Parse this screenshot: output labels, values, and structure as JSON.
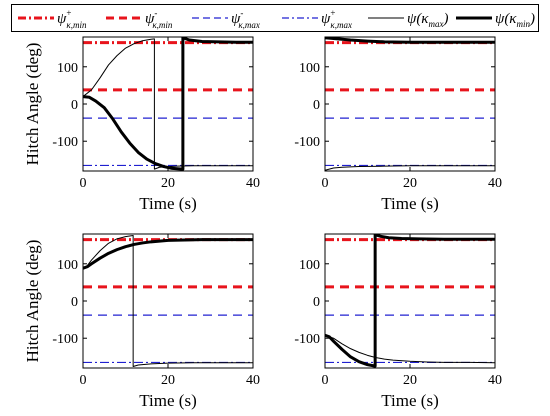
{
  "legend": {
    "entries": [
      {
        "sym": "ψ",
        "sup": "+",
        "sub": "κ,min",
        "color": "#e8141c",
        "dash": "8,3,2,3",
        "width": 3
      },
      {
        "sym": "ψ",
        "sup": "-",
        "sub": "κ,min",
        "color": "#e8141c",
        "dash": "8,5",
        "width": 3
      },
      {
        "sym": "ψ",
        "sup": "-",
        "sub": "κ,max",
        "color": "#2020d0",
        "dash": "7,4",
        "width": 1.2
      },
      {
        "sym": "ψ",
        "sup": "+",
        "sub": "κ,max",
        "color": "#2020d0",
        "dash": "7,3,2,3",
        "width": 1.2
      },
      {
        "sym": "ψ(κ",
        "sub2": "max",
        "tail": ")",
        "color": "#000000",
        "dash": "",
        "width": 1
      },
      {
        "sym": "ψ(κ",
        "sub2": "min",
        "tail": ")",
        "color": "#000000",
        "dash": "",
        "width": 3
      }
    ]
  },
  "chart_data": [
    {
      "type": "line",
      "xlabel": "Time (s)",
      "ylabel": "Hitch Angle (deg)",
      "xlim": [
        0,
        40
      ],
      "ylim": [
        -180,
        180
      ],
      "xticks": [
        0,
        20,
        40
      ],
      "yticks": [
        -100,
        0,
        100
      ],
      "hlines": [
        {
          "name": "ψ+κ,min",
          "y": 165,
          "color": "#e8141c",
          "style": "dash-dot",
          "width": 3
        },
        {
          "name": "ψ-κ,min",
          "y": 38,
          "color": "#e8141c",
          "style": "dashed",
          "width": 3
        },
        {
          "name": "ψ-κ,max",
          "y": -38,
          "color": "#2020d0",
          "style": "dashed",
          "width": 1.2
        },
        {
          "name": "ψ+κ,max",
          "y": -165,
          "color": "#2020d0",
          "style": "dash-dot",
          "width": 1.2
        }
      ],
      "series": [
        {
          "name": "ψ(κmax)",
          "color": "#000000",
          "width": 1,
          "x": [
            0,
            2,
            4,
            6,
            8,
            10,
            12,
            14,
            16,
            16.8,
            16.8,
            18,
            22,
            26,
            30,
            34,
            40
          ],
          "y": [
            20,
            38,
            70,
            105,
            130,
            150,
            162,
            170,
            174,
            175,
            -175,
            -170,
            -167,
            -166,
            -166,
            -166,
            -166
          ]
        },
        {
          "name": "ψ(κmin)",
          "color": "#000000",
          "width": 3,
          "x": [
            0,
            1.5,
            3,
            5,
            7,
            9,
            11,
            13,
            15,
            17,
            19,
            21,
            23.5,
            23.5,
            25,
            28,
            32,
            36,
            40
          ],
          "y": [
            20,
            18,
            8,
            -10,
            -40,
            -75,
            -105,
            -130,
            -148,
            -160,
            -168,
            -173,
            -175,
            178,
            172,
            168,
            167,
            166,
            166
          ]
        }
      ]
    },
    {
      "type": "line",
      "xlabel": "Time (s)",
      "ylabel": "",
      "xlim": [
        0,
        40
      ],
      "ylim": [
        -180,
        180
      ],
      "xticks": [
        0,
        20,
        40
      ],
      "yticks": [
        -100,
        0,
        100
      ],
      "hlines": [
        {
          "name": "ψ+κ,min",
          "y": 165,
          "color": "#e8141c",
          "style": "dash-dot",
          "width": 3
        },
        {
          "name": "ψ-κ,min",
          "y": 38,
          "color": "#e8141c",
          "style": "dashed",
          "width": 3
        },
        {
          "name": "ψ-κ,max",
          "y": -38,
          "color": "#2020d0",
          "style": "dashed",
          "width": 1.2
        },
        {
          "name": "ψ+κ,max",
          "y": -165,
          "color": "#2020d0",
          "style": "dash-dot",
          "width": 1.2
        }
      ],
      "series": [
        {
          "name": "ψ(κmax)",
          "color": "#000000",
          "width": 1,
          "x": [
            0,
            1,
            2,
            4,
            8,
            14,
            20,
            30,
            40
          ],
          "y": [
            -178,
            -175,
            -172,
            -170,
            -168,
            -167,
            -166,
            -166,
            -166
          ]
        },
        {
          "name": "ψ(κmin)",
          "color": "#000000",
          "width": 3,
          "x": [
            0,
            1,
            3,
            6,
            10,
            14,
            20,
            30,
            40
          ],
          "y": [
            178,
            177,
            175,
            172,
            169,
            167,
            166,
            166,
            166
          ]
        }
      ]
    },
    {
      "type": "line",
      "xlabel": "Time (s)",
      "ylabel": "Hitch Angle (deg)",
      "xlim": [
        0,
        40
      ],
      "ylim": [
        -180,
        180
      ],
      "xticks": [
        0,
        20,
        40
      ],
      "yticks": [
        -100,
        0,
        100
      ],
      "hlines": [
        {
          "name": "ψ+κ,min",
          "y": 165,
          "color": "#e8141c",
          "style": "dash-dot",
          "width": 3
        },
        {
          "name": "ψ-κ,min",
          "y": 38,
          "color": "#e8141c",
          "style": "dashed",
          "width": 3
        },
        {
          "name": "ψ-κ,max",
          "y": -38,
          "color": "#2020d0",
          "style": "dashed",
          "width": 1.2
        },
        {
          "name": "ψ+κ,max",
          "y": -165,
          "color": "#2020d0",
          "style": "dash-dot",
          "width": 1.2
        }
      ],
      "series": [
        {
          "name": "ψ(κmax)",
          "color": "#000000",
          "width": 1,
          "x": [
            0,
            1,
            2,
            4,
            6,
            8,
            10,
            11.8,
            11.8,
            13,
            16,
            20,
            26,
            32,
            40
          ],
          "y": [
            88,
            95,
            110,
            135,
            155,
            167,
            173,
            176,
            -176,
            -172,
            -169,
            -167,
            -166,
            -166,
            -166
          ]
        },
        {
          "name": "ψ(κmin)",
          "color": "#000000",
          "width": 3,
          "x": [
            0,
            1,
            2,
            4,
            6,
            8,
            10,
            12,
            14,
            16,
            18,
            20,
            24,
            28,
            32,
            40
          ],
          "y": [
            88,
            92,
            100,
            115,
            128,
            138,
            146,
            152,
            156,
            159,
            161,
            163,
            164,
            165,
            165,
            165
          ]
        }
      ]
    },
    {
      "type": "line",
      "xlabel": "Time (s)",
      "ylabel": "",
      "xlim": [
        0,
        40
      ],
      "ylim": [
        -180,
        180
      ],
      "xticks": [
        0,
        20,
        40
      ],
      "yticks": [
        -100,
        0,
        100
      ],
      "hlines": [
        {
          "name": "ψ+κ,min",
          "y": 165,
          "color": "#e8141c",
          "style": "dash-dot",
          "width": 3
        },
        {
          "name": "ψ-κ,min",
          "y": 38,
          "color": "#e8141c",
          "style": "dashed",
          "width": 3
        },
        {
          "name": "ψ-κ,max",
          "y": -38,
          "color": "#2020d0",
          "style": "dashed",
          "width": 1.2
        },
        {
          "name": "ψ+κ,max",
          "y": -165,
          "color": "#2020d0",
          "style": "dash-dot",
          "width": 1.2
        }
      ],
      "series": [
        {
          "name": "ψ(κmax)",
          "color": "#000000",
          "width": 1,
          "x": [
            0,
            2,
            4,
            6,
            8,
            10,
            12,
            14,
            16,
            20,
            24,
            28,
            34,
            40
          ],
          "y": [
            -92,
            -100,
            -115,
            -128,
            -138,
            -146,
            -152,
            -156,
            -159,
            -162,
            -164,
            -165,
            -165,
            -166
          ]
        },
        {
          "name": "ψ(κmin)",
          "color": "#000000",
          "width": 3,
          "x": [
            0,
            1,
            2,
            4,
            6,
            8,
            10,
            11.8,
            11.8,
            13,
            15,
            18,
            22,
            28,
            34,
            40
          ],
          "y": [
            -92,
            -96,
            -108,
            -130,
            -150,
            -163,
            -171,
            -175,
            178,
            174,
            170,
            168,
            167,
            166,
            166,
            166
          ]
        }
      ]
    }
  ]
}
